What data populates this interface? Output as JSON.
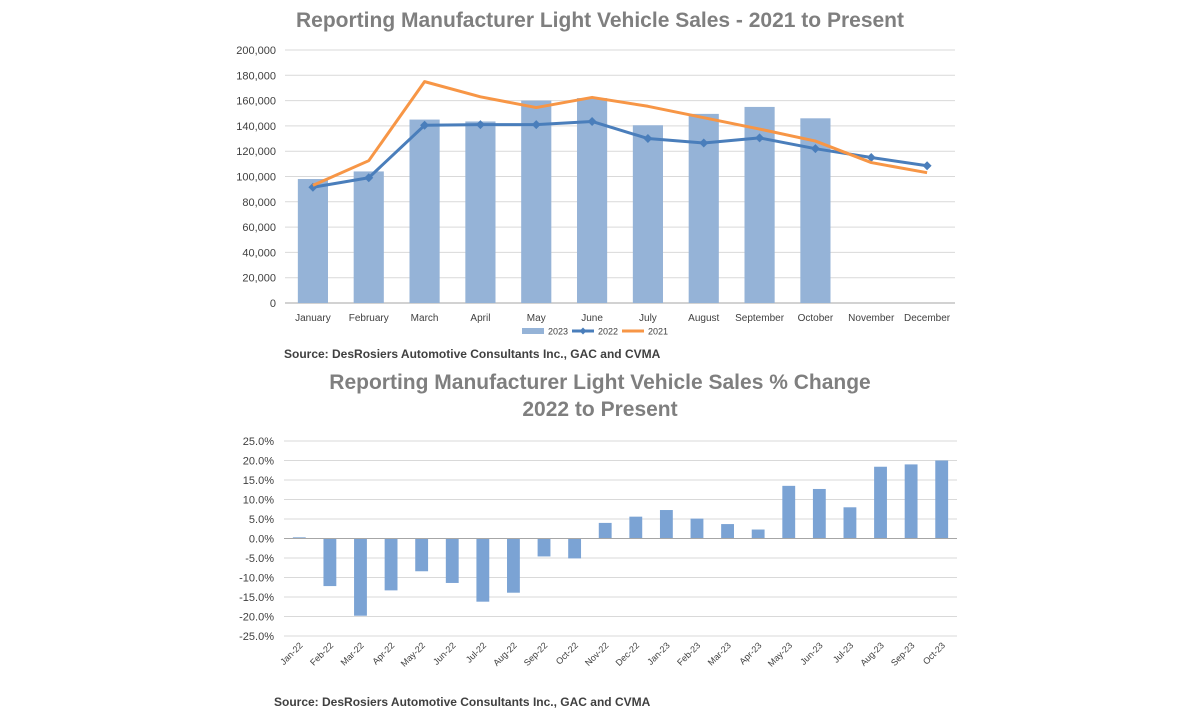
{
  "chart_data": [
    {
      "type": "bar+line",
      "title": "Reporting Manufacturer Light Vehicle Sales - 2021 to Present",
      "source": "Source:  DesRosiers Automotive Consultants Inc., GAC and CVMA",
      "categories": [
        "January",
        "February",
        "March",
        "April",
        "May",
        "June",
        "July",
        "August",
        "September",
        "October",
        "November",
        "December"
      ],
      "ylim": [
        0,
        200000
      ],
      "yticks": [
        "0",
        "20,000",
        "40,000",
        "60,000",
        "80,000",
        "100,000",
        "120,000",
        "140,000",
        "160,000",
        "180,000",
        "200,000"
      ],
      "grid": true,
      "legend_position": "bottom",
      "series": [
        {
          "name": "2023",
          "kind": "bar",
          "color": "#95b3d7",
          "values": [
            98000,
            104000,
            145000,
            143500,
            160000,
            162000,
            140500,
            149500,
            155000,
            146000,
            null,
            null
          ]
        },
        {
          "name": "2022",
          "kind": "line",
          "marker": "diamond",
          "color": "#4a7ebb",
          "values": [
            91500,
            99000,
            140500,
            141000,
            141000,
            143500,
            130000,
            126500,
            130500,
            122000,
            115000,
            108500
          ]
        },
        {
          "name": "2021",
          "kind": "line",
          "color": "#f79646",
          "values": [
            93000,
            112500,
            175000,
            163000,
            154500,
            162500,
            155500,
            146500,
            137500,
            128000,
            111000,
            103000
          ]
        }
      ]
    },
    {
      "type": "bar",
      "title_lines": [
        "Reporting Manufacturer Light Vehicle Sales % Change",
        "2022 to Present"
      ],
      "source": "Source:  DesRosiers Automotive Consultants Inc., GAC and CVMA",
      "categories": [
        "Jan-22",
        "Feb-22",
        "Mar-22",
        "Apr-22",
        "May-22",
        "Jun-22",
        "Jul-22",
        "Aug-22",
        "Sep-22",
        "Oct-22",
        "Nov-22",
        "Dec-22",
        "Jan-23",
        "Feb-23",
        "Mar-23",
        "Apr-23",
        "May-23",
        "Jun-23",
        "Jul-23",
        "Aug-23",
        "Sep-23",
        "Oct-23"
      ],
      "values": [
        0.3,
        -12.2,
        -19.8,
        -13.3,
        -8.4,
        -11.4,
        -16.2,
        -13.9,
        -4.6,
        -5.1,
        4.0,
        5.6,
        7.3,
        5.1,
        3.7,
        2.3,
        13.5,
        12.7,
        8.0,
        18.4,
        19.0,
        20.0
      ],
      "ylim": [
        -25,
        25
      ],
      "yticks": [
        "-25.0%",
        "-20.0%",
        "-15.0%",
        "-10.0%",
        "-5.0%",
        "0.0%",
        "5.0%",
        "10.0%",
        "15.0%",
        "20.0%",
        "25.0%"
      ],
      "grid": true,
      "color": "#7ba3d4"
    }
  ]
}
